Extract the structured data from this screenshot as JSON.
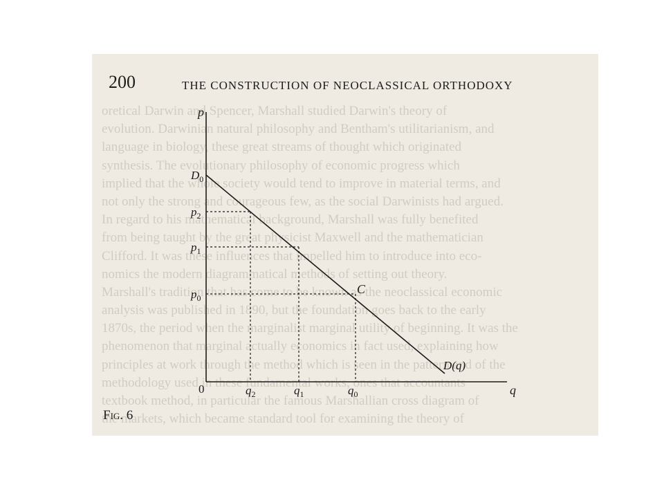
{
  "page": {
    "number": "200",
    "running_head": "THE CONSTRUCTION OF NEOCLASSICAL ORTHODOXY"
  },
  "figure": {
    "caption": "Fig. 6",
    "axis_labels": {
      "y": "p",
      "x": "q"
    },
    "origin_label": "0",
    "y_tick_labels": {
      "d0": "D0",
      "p2": "p2",
      "p1": "p1",
      "p0": "p0"
    },
    "x_tick_labels": {
      "q2": "q2",
      "q1": "q1",
      "q0": "q0"
    },
    "point_label": "C",
    "curve_label": "D(q)"
  },
  "bleed_through_lines": [
    "oretical Darwin and Spencer, Marshall studied Darwin's theory of",
    "evolution. Darwinian natural philosophy and Bentham's utilitarianism, and",
    "language in biology, these great streams of thought which originated",
    "synthesis. The evolutionary philosophy of economic progress which",
    "implied that the whole society would tend to improve in material terms, and",
    "not only the strong and courageous few, as the social Darwinists had argued.",
    "In regard to his mathematical background, Marshall was fully benefited",
    "from being taught by the great physicist Maxwell and the mathematician",
    "Clifford. It was these influences that impelled him to introduce into eco-",
    "nomics the modern diagrammatical methods of setting out theory.",
    "Marshall's tradition that has come to be known as the neoclassical economic",
    "analysis was published in 1890, but the foundation goes back to the early",
    "1870s, the period when the marginalist marginal utility of beginning. It was the",
    "phenomenon that marginal actually economics in fact used, explaining how",
    "principles at work through the method which is seen in the pattern and of the",
    "methodology used in these fundamental works, ones that accountants",
    "textbook method, in particular the famous Marshallian cross diagram of",
    "the markets, which became standard tool for examining the theory of"
  ]
}
